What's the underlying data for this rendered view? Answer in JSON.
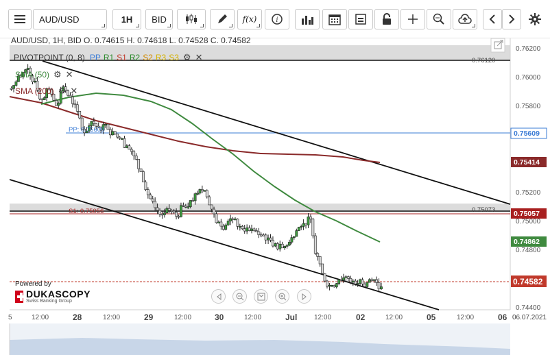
{
  "toolbar": {
    "menu_icon": "hamburger-icon",
    "instrument": "AUD/USD",
    "period": "1H",
    "side": "BID",
    "icons": [
      "candlestick-icon",
      "pen-icon",
      "function-icon",
      "info-icon",
      "volume-bars-icon",
      "calendar-icon",
      "layout-icon",
      "lock-icon",
      "crosshair-icon",
      "zoom-icon",
      "cloud-upload-icon",
      "arrow-left-icon",
      "arrow-right-icon",
      "gear-icon"
    ]
  },
  "info": {
    "summary": "AUD/USD, 1H, BID   O. 0.74615 H. 0.74618 L. 0.74528 C. 0.74582"
  },
  "legends": {
    "pivot": {
      "name": "PIVOTPOINT (0, 8)",
      "items": [
        "PP",
        "R1",
        "S1",
        "R2",
        "S2",
        "R3",
        "S3"
      ],
      "colors": [
        "#3a7bd5",
        "#2d8a2d",
        "#c0392b",
        "#2d8a2d",
        "#d18a00",
        "#d4b100",
        "#d4b100"
      ]
    },
    "sma50": {
      "label": "SMA (50)",
      "color": "#3f8a3f"
    },
    "sma200": {
      "label": "SMA (200)",
      "color": "#8a2a2a"
    }
  },
  "levels": {
    "r1_label": "0.76120",
    "pp_label": "PP: 0.75609",
    "s1_label": "S1: 0.75056",
    "s1_right_label": "0.75073"
  },
  "price_axis": {
    "ticks": [
      "0.76200",
      "0.76000",
      "0.75800",
      "0.75200",
      "0.75000",
      "0.74800",
      "0.74400"
    ],
    "tags": [
      {
        "value": "0.75609",
        "color": "#3a7bd5",
        "text": "#ffffff"
      },
      {
        "value": "0.75414",
        "color": "#8a2a2a",
        "text": "#ffffff"
      },
      {
        "value": "0.75057",
        "color": "#a82020",
        "text": "#ffffff"
      },
      {
        "value": "0.74862",
        "color": "#3f8a3f",
        "text": "#ffffff"
      },
      {
        "value": "0.74582",
        "color": "#c0392b",
        "text": "#ffffff"
      }
    ]
  },
  "time_axis": {
    "labels": [
      "5",
      "12:00",
      "28",
      "12:00",
      "29",
      "12:00",
      "30",
      "12:00",
      "Jul",
      "12:00",
      "02",
      "12:00",
      "05",
      "12:00",
      "06",
      "06.07.2021"
    ]
  },
  "branding": {
    "powered_by": "Powered by",
    "name": "DUKASCOPY",
    "sub": "Swiss Banking Group"
  },
  "nav": [
    "scroll-left-icon",
    "zoom-out-icon",
    "fit-icon",
    "zoom-in-icon",
    "scroll-right-icon"
  ],
  "chart_data": {
    "type": "candlestick",
    "instrument": "AUD/USD",
    "timeframe": "1H",
    "ylim": [
      0.7442,
      0.7624
    ],
    "last": 0.74582,
    "close_path": [
      0.7598,
      0.7604,
      0.761,
      0.7601,
      0.7588,
      0.7595,
      0.7584,
      0.7597,
      0.759,
      0.758,
      0.7565,
      0.7573,
      0.7569,
      0.7571,
      0.7566,
      0.7561,
      0.7556,
      0.7549,
      0.7538,
      0.7522,
      0.7513,
      0.7508,
      0.7511,
      0.7507,
      0.7514,
      0.7518,
      0.7523,
      0.7525,
      0.7512,
      0.7503,
      0.7501,
      0.7505,
      0.75,
      0.7499,
      0.7497,
      0.7494,
      0.7492,
      0.7488,
      0.7485,
      0.7489,
      0.7497,
      0.7502,
      0.7505,
      0.7479,
      0.7462,
      0.7459,
      0.7463,
      0.7465,
      0.7462,
      0.7463,
      0.7461,
      0.7463,
      0.7458
    ],
    "sma50_path": [
      0.7582,
      0.7587,
      0.7585,
      0.758,
      0.757,
      0.7556,
      0.754,
      0.7527,
      0.7514,
      0.7503,
      0.7494,
      0.7486
    ],
    "sma200_path": [
      0.7586,
      0.758,
      0.7575,
      0.7567,
      0.756,
      0.7555,
      0.7549,
      0.7545,
      0.7544,
      0.7542,
      0.7541
    ],
    "pivot_levels": {
      "R1": 0.7612,
      "PP": 0.75609,
      "S1": 0.75056
    }
  }
}
